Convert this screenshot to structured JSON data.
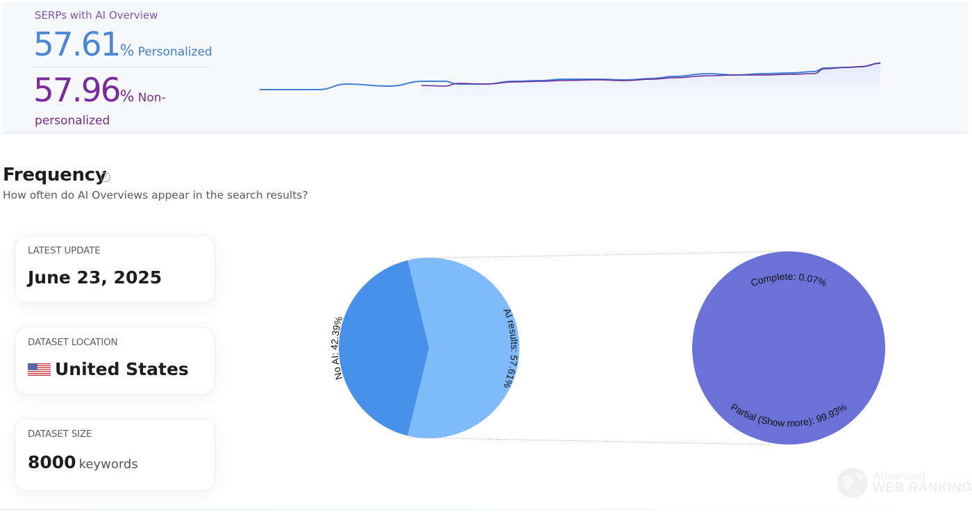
{
  "overview": {
    "title": "SERPs with AI Overview",
    "personalized": {
      "value": "57.61",
      "unit": "%",
      "label": "Personalized",
      "color": "#4b86d6"
    },
    "non_personalized": {
      "value": "57.96",
      "unit": "%",
      "label": "Non-",
      "label_cont": "personalized",
      "color": "#7a2a9e"
    }
  },
  "frequency": {
    "title": "Frequency",
    "help_icon": "?",
    "subtitle": "How often do AI Overviews appear in the search results?"
  },
  "cards": [
    {
      "label": "LATEST UPDATE",
      "value": "June 23, 2025"
    },
    {
      "label": "DATASET LOCATION",
      "value": "United States",
      "icon": "us-flag-icon"
    },
    {
      "label": "DATASET SIZE",
      "value": "8000",
      "unit": "keywords"
    }
  ],
  "watermark": {
    "line1": "Advanced",
    "line2": "WEB RANKING"
  },
  "chart_data": [
    {
      "type": "line",
      "title": "SERPs with AI Overview (sparkline)",
      "xlabel": "",
      "ylabel": "",
      "grid": false,
      "series": [
        {
          "name": "Personalized",
          "color": "#3f7fd8",
          "points": [
            [
              374,
              129
            ],
            [
              458,
              129
            ],
            [
              500,
              121
            ],
            [
              560,
              124
            ],
            [
              610,
              117
            ],
            [
              640,
              117
            ],
            [
              660,
              121
            ],
            [
              700,
              121
            ],
            [
              740,
              117
            ],
            [
              780,
              116
            ],
            [
              810,
              114
            ],
            [
              860,
              114
            ],
            [
              900,
              115
            ],
            [
              940,
              113
            ],
            [
              970,
              110
            ],
            [
              1020,
              106
            ],
            [
              1060,
              108
            ],
            [
              1100,
              106
            ],
            [
              1140,
              105
            ],
            [
              1172,
              103
            ],
            [
              1188,
              98
            ],
            [
              1220,
              97
            ],
            [
              1240,
              96
            ],
            [
              1268,
              91
            ]
          ]
        },
        {
          "name": "Non-personalized",
          "color": "#6a2a95",
          "points": [
            [
              607,
              123
            ],
            [
              640,
              124
            ],
            [
              660,
              120
            ],
            [
              700,
              121
            ],
            [
              740,
              118
            ],
            [
              780,
              117
            ],
            [
              810,
              116
            ],
            [
              860,
              115
            ],
            [
              900,
              116
            ],
            [
              940,
              114
            ],
            [
              970,
              112
            ],
            [
              1020,
              109
            ],
            [
              1060,
              108
            ],
            [
              1100,
              108
            ],
            [
              1140,
              107
            ],
            [
              1172,
              106
            ],
            [
              1188,
              99
            ],
            [
              1220,
              97
            ],
            [
              1240,
              96
            ],
            [
              1268,
              91
            ]
          ]
        }
      ]
    },
    {
      "type": "pie",
      "title": "AI Overview presence",
      "categories": [
        "No AI",
        "AI results"
      ],
      "values": [
        42.39,
        57.61
      ],
      "labels": [
        "No AI: 42.39%",
        "AI results: 57.61%"
      ],
      "colors": [
        "#4791ea",
        "#7fbafb"
      ]
    },
    {
      "type": "pie",
      "title": "AI Overview type",
      "categories": [
        "Complete",
        "Partial (Show more)"
      ],
      "values": [
        0.07,
        99.93
      ],
      "labels": [
        "Complete: 0.07%",
        "Partial (Show more): 99.93%"
      ],
      "colors": [
        "#6a72d8",
        "#6a72d8"
      ]
    }
  ]
}
